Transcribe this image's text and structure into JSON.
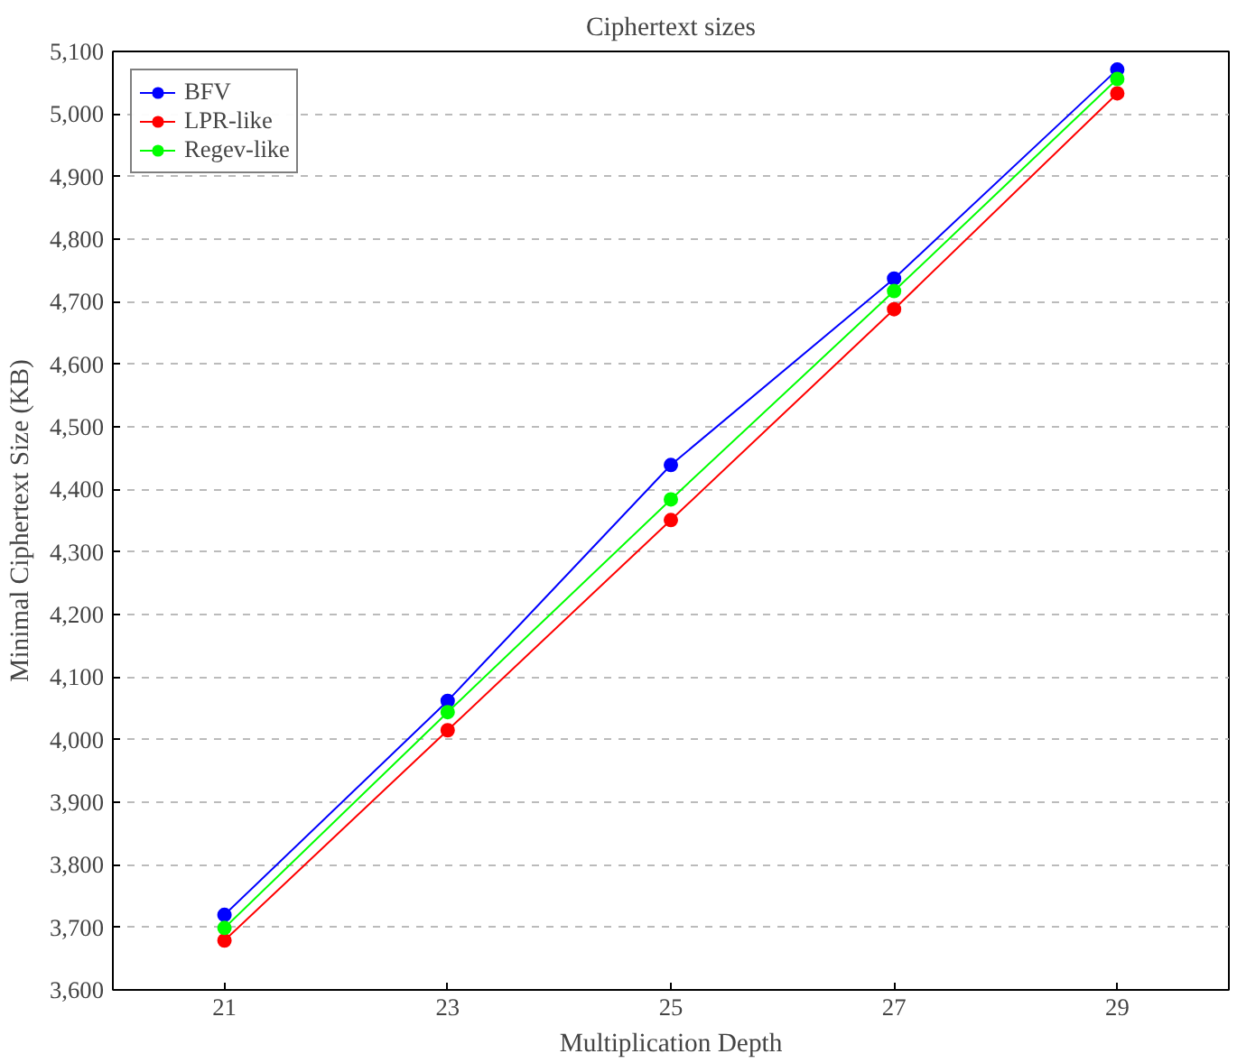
{
  "chart_data": {
    "type": "line",
    "title": "Ciphertext sizes",
    "xlabel": "Multiplication Depth",
    "ylabel": "Minimal Ciphertext Size (KB)",
    "x": [
      21,
      23,
      25,
      27,
      29
    ],
    "series": [
      {
        "name": "BFV",
        "color": "#0000ff",
        "values": [
          3720,
          4062,
          4439,
          4737,
          5071
        ]
      },
      {
        "name": "LPR-like",
        "color": "#ff0000",
        "values": [
          3679,
          4015,
          4351,
          4688,
          5033
        ]
      },
      {
        "name": "Regev-like",
        "color": "#00ff00",
        "values": [
          3699,
          4044,
          4384,
          4717,
          5056
        ]
      }
    ],
    "xlim": [
      20,
      30
    ],
    "xticks": [
      21,
      23,
      25,
      27,
      29
    ],
    "ylim": [
      3600,
      5100
    ],
    "yticks": [
      {
        "value": 3600,
        "label": "3,600"
      },
      {
        "value": 3700,
        "label": "3,700"
      },
      {
        "value": 3800,
        "label": "3,800"
      },
      {
        "value": 3900,
        "label": "3,900"
      },
      {
        "value": 4000,
        "label": "4,000"
      },
      {
        "value": 4100,
        "label": "4,100"
      },
      {
        "value": 4200,
        "label": "4,200"
      },
      {
        "value": 4300,
        "label": "4,300"
      },
      {
        "value": 4400,
        "label": "4,400"
      },
      {
        "value": 4500,
        "label": "4,500"
      },
      {
        "value": 4600,
        "label": "4,600"
      },
      {
        "value": 4700,
        "label": "4,700"
      },
      {
        "value": 4800,
        "label": "4,800"
      },
      {
        "value": 4900,
        "label": "4,900"
      },
      {
        "value": 5000,
        "label": "5,000"
      },
      {
        "value": 5100,
        "label": "5,100"
      }
    ],
    "grid": "y",
    "legend": "top left",
    "marker": "circle",
    "line_style": "solid"
  }
}
